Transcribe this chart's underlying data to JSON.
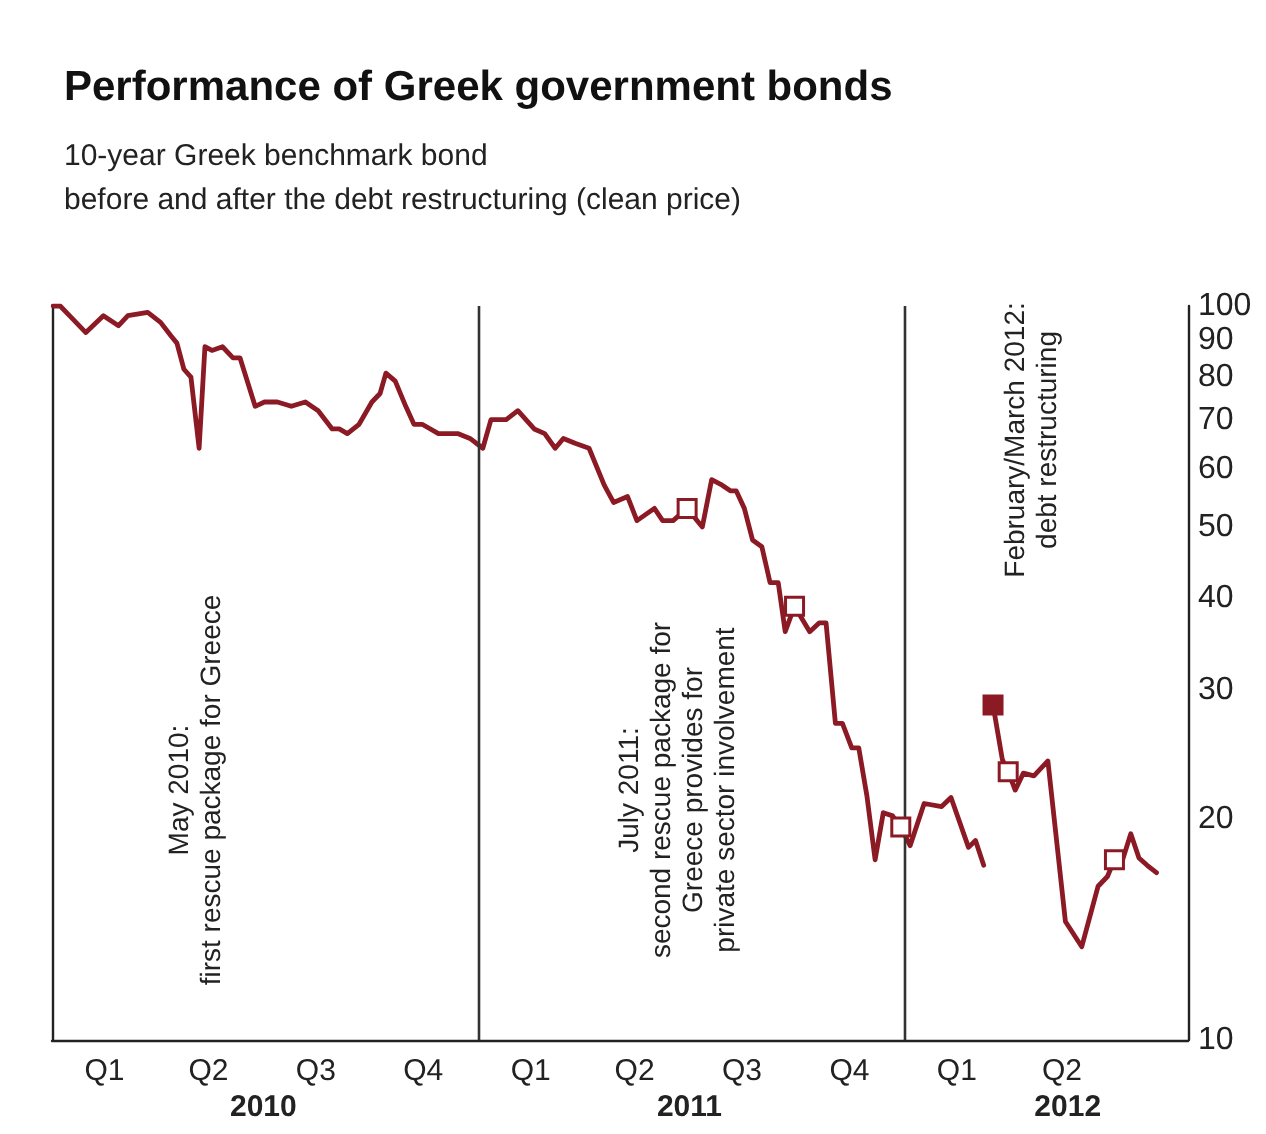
{
  "chart_data": {
    "type": "line",
    "title": "Performance of Greek government bonds",
    "subtitle": "10-year Greek benchmark bond\nbefore and after the debt restructuring (clean price)",
    "xlim": [
      "2010-01-01",
      "2012-08-31"
    ],
    "xticks": [
      {
        "value": "2010-02-15",
        "label": "Q1"
      },
      {
        "value": "2010-05-15",
        "label": "Q2"
      },
      {
        "value": "2010-08-15",
        "label": "Q3"
      },
      {
        "value": "2010-11-15",
        "label": "Q4"
      },
      {
        "value": "2011-02-15",
        "label": "Q1"
      },
      {
        "value": "2011-05-15",
        "label": "Q2"
      },
      {
        "value": "2011-08-15",
        "label": "Q3"
      },
      {
        "value": "2011-11-15",
        "label": "Q4"
      },
      {
        "value": "2012-02-15",
        "label": "Q1"
      },
      {
        "value": "2012-05-15",
        "label": "Q2"
      }
    ],
    "x2lim": [
      "2010-01-01",
      "2012-08-31"
    ],
    "x2ticks": [
      {
        "value": "2010-07-01",
        "label": "2010"
      },
      {
        "value": "2011-07-01",
        "label": "2011"
      },
      {
        "value": "2012-05-20",
        "label": "2012"
      }
    ],
    "ylim": [
      10,
      100
    ],
    "yticks": [
      10,
      20,
      30,
      40,
      50,
      60,
      70,
      80,
      90,
      100
    ],
    "log": "y",
    "grid": false,
    "legend": false,
    "series": [
      {
        "color": "#8b1a24",
        "marker": "none",
        "line_style": "solid",
        "x": [
          "2010-01-02",
          "2010-01-08",
          "2010-01-16",
          "2010-01-30",
          "2010-02-14",
          "2010-02-27",
          "2010-03-07",
          "2010-03-24",
          "2010-04-04",
          "2010-04-13",
          "2010-04-18",
          "2010-04-24",
          "2010-04-30",
          "2010-05-07",
          "2010-05-12",
          "2010-05-18",
          "2010-05-27",
          "2010-06-05",
          "2010-06-11",
          "2010-06-24",
          "2010-07-02",
          "2010-07-13",
          "2010-07-25",
          "2010-08-06",
          "2010-08-17",
          "2010-08-29",
          "2010-09-04",
          "2010-09-11",
          "2010-09-21",
          "2010-10-02",
          "2010-10-09",
          "2010-10-14",
          "2010-10-22",
          "2010-10-31",
          "2010-11-07",
          "2010-11-14",
          "2010-11-28",
          "2010-12-15",
          "2010-12-25",
          "2011-01-05",
          "2011-01-12",
          "2011-01-25",
          "2011-02-04",
          "2011-02-18",
          "2011-02-27",
          "2011-03-08",
          "2011-03-15",
          "2011-03-25",
          "2011-04-06",
          "2011-04-19",
          "2011-04-27",
          "2011-05-09",
          "2011-05-17",
          "2011-06-01",
          "2011-06-08",
          "2011-06-17",
          "2011-06-29",
          "2011-07-12",
          "2011-07-20",
          "2011-07-29",
          "2011-08-05",
          "2011-08-10",
          "2011-08-17",
          "2011-08-24",
          "2011-09-01",
          "2011-09-08",
          "2011-09-15",
          "2011-09-21",
          "2011-09-29",
          "2011-10-12",
          "2011-10-20",
          "2011-10-26",
          "2011-11-03",
          "2011-11-09",
          "2011-11-17",
          "2011-11-23",
          "2011-11-30",
          "2011-12-07",
          "2011-12-14",
          "2011-12-22",
          "2011-12-29",
          "2012-01-06",
          "2012-01-18",
          "2012-02-02",
          "2012-02-10",
          "2012-02-25",
          "2012-03-02",
          "2012-03-09",
          "2012-03-13",
          "2012-03-17",
          "2012-03-25",
          "2012-03-30",
          "2012-04-05",
          "2012-04-12",
          "2012-04-21",
          "2012-05-03",
          "2012-05-18",
          "2012-06-01",
          "2012-06-15",
          "2012-06-23",
          "2012-06-29",
          "2012-07-06",
          "2012-07-13",
          "2012-07-20",
          "2012-07-27",
          "2012-08-04"
        ],
        "values": [
          100,
          100,
          97,
          92,
          97,
          94,
          97,
          98,
          95,
          91,
          89,
          82,
          80,
          64,
          88,
          87,
          88,
          85,
          85,
          73,
          74,
          74,
          73,
          74,
          72,
          68,
          68,
          67,
          69,
          74,
          76,
          81,
          79,
          73,
          69,
          69,
          67,
          67,
          66,
          64,
          70,
          70,
          72,
          68,
          67,
          64,
          66,
          65,
          64,
          57,
          54,
          55,
          51,
          53,
          51,
          51,
          53,
          50,
          58,
          57,
          56,
          56,
          53,
          48,
          47,
          42,
          42,
          36,
          39,
          36,
          37,
          37,
          27,
          27,
          25,
          25,
          21.5,
          17.6,
          20.4,
          20.2,
          19.5,
          18.4,
          21,
          20.8,
          21.4,
          18.3,
          18.7,
          17.3,
          null,
          28.6,
          24.1,
          23.2,
          21.9,
          23.1,
          22.9,
          24,
          14.5,
          13.4,
          16.2,
          16.7,
          17.6,
          17.6,
          19.1,
          17.7,
          17.3,
          16.9
        ]
      },
      {
        "type": "scatter",
        "color": "#ffffff",
        "marker": "square",
        "x": [
          "2011-06-29",
          "2011-09-29",
          "2011-12-29",
          "2012-03-30",
          "2012-06-29"
        ],
        "values": [
          53,
          39,
          19.5,
          23.2,
          17.6
        ]
      },
      {
        "type": "scatter",
        "color": "#8b1a24",
        "marker": "square",
        "x": [
          "2012-03-17"
        ],
        "values": [
          28.6
        ]
      }
    ],
    "ref_lines": [
      {
        "axis": "x",
        "value": "2011-01-01",
        "color": "#333333"
      },
      {
        "axis": "x",
        "value": "2012-01-01",
        "color": "#333333"
      }
    ],
    "annotations": [
      "May 2010:\nfirst rescue package for Greece",
      "July 2011:\nsecond rescue package for\nGreece provides for\nprivate sector involvement",
      "February/March 2012:\ndebt restructuring"
    ]
  }
}
